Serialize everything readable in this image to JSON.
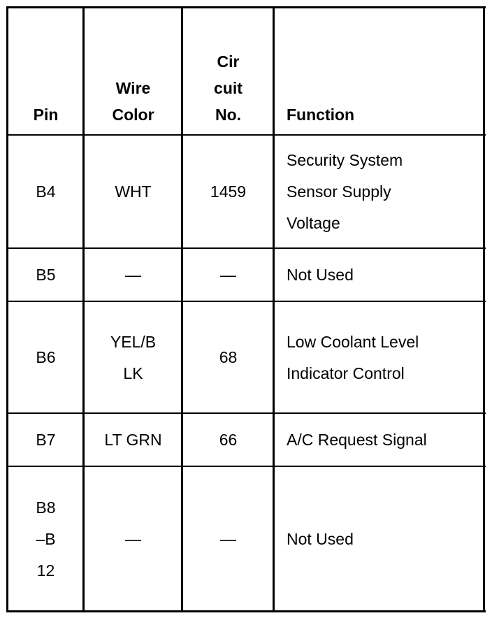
{
  "table": {
    "headers": [
      "Pin",
      "Wire\nColor",
      "Cir\ncuit\nNo.",
      "Function"
    ],
    "rows": [
      {
        "pin": "B4",
        "wire_color": "WHT",
        "circuit": "1459",
        "function": "Security System\nSensor Supply\nVoltage"
      },
      {
        "pin": "B5",
        "wire_color": "—",
        "circuit": "—",
        "function": "Not Used"
      },
      {
        "pin": "B6",
        "wire_color": "YEL/B\nLK",
        "circuit": "68",
        "function": "Low Coolant Level\nIndicator Control"
      },
      {
        "pin": "B7",
        "wire_color": "LT GRN",
        "circuit": "66",
        "function": "A/C Request Signal"
      },
      {
        "pin": "B8\n–B\n12",
        "wire_color": "—",
        "circuit": "—",
        "function": "Not Used"
      }
    ]
  }
}
